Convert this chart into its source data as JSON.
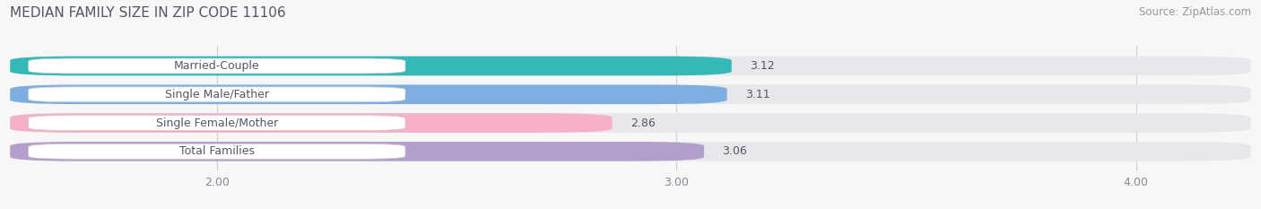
{
  "title": "MEDIAN FAMILY SIZE IN ZIP CODE 11106",
  "source": "Source: ZipAtlas.com",
  "categories": [
    "Married-Couple",
    "Single Male/Father",
    "Single Female/Mother",
    "Total Families"
  ],
  "values": [
    3.12,
    3.11,
    2.86,
    3.06
  ],
  "bar_colors": [
    "#35b8b8",
    "#7eaee0",
    "#f5afc8",
    "#b49fcc"
  ],
  "xlim": [
    1.55,
    4.25
  ],
  "xticks": [
    2.0,
    3.0,
    4.0
  ],
  "xtick_labels": [
    "2.00",
    "3.00",
    "4.00"
  ],
  "bar_height": 0.68,
  "figsize": [
    14.06,
    2.33
  ],
  "dpi": 100,
  "title_fontsize": 11,
  "label_fontsize": 9,
  "value_fontsize": 9,
  "source_fontsize": 8.5,
  "background_color": "#f7f7f7",
  "bar_bg_color": "#e8e8ec",
  "label_box_color": "#ffffff",
  "grid_color": "#d0d0d8",
  "text_color": "#555566",
  "value_color": "#555566"
}
